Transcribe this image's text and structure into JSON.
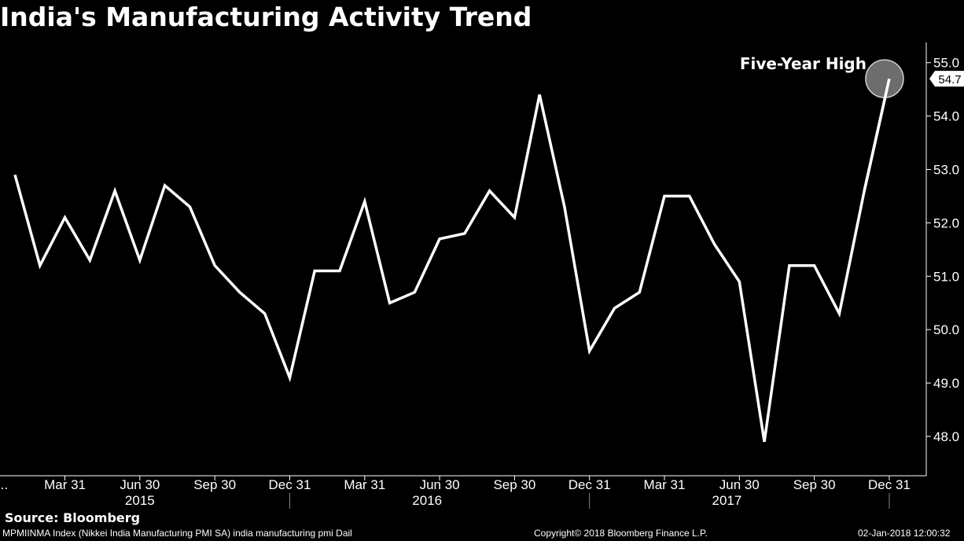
{
  "header": {
    "title": "India's Manufacturing Activity Trend"
  },
  "footer": {
    "source": "Source: Bloomberg",
    "index_desc": "MPMIINMA Index (Nikkei India Manufacturing PMI SA) india manufacturing pmi  Dail",
    "copyright": "Copyright© 2018 Bloomberg Finance L.P.",
    "timestamp": "02-Jan-2018 12:00:32"
  },
  "colors": {
    "background": "#000000",
    "line": "#ffffff",
    "marker": "#808080"
  },
  "chart_data": {
    "type": "line",
    "title": "India's Manufacturing Activity Trend",
    "xlabel": "",
    "ylabel": "",
    "ylim": [
      47.5,
      55.35
    ],
    "y_ticks": [
      48.0,
      49.0,
      50.0,
      51.0,
      52.0,
      53.0,
      54.0,
      55.0
    ],
    "y_tick_labels": [
      "48.0",
      "49.0",
      "50.0",
      "51.0",
      "52.0",
      "53.0",
      "54.0",
      "55.0"
    ],
    "grid": false,
    "x_tick_labels": [
      "...",
      "Mar 31",
      "Jun 30",
      "Sep 30",
      "Dec 31",
      "Mar 31",
      "Jun 30",
      "Sep 30",
      "Dec 31",
      "Mar 31",
      "Jun 30",
      "Sep 30",
      "Dec 31"
    ],
    "x_tick_month_index": [
      -0.5,
      2,
      5,
      8,
      11,
      14,
      17,
      20,
      23,
      26,
      29,
      32,
      35
    ],
    "year_labels": [
      "2015",
      "2016",
      "2017"
    ],
    "year_label_month_index": [
      5,
      16.5,
      28.5
    ],
    "year_divider_month_index": [
      11,
      23,
      35
    ],
    "series": [
      {
        "name": "Nikkei India Manufacturing PMI SA",
        "months": [
          "Jan 2015",
          "Feb 2015",
          "Mar 2015",
          "Apr 2015",
          "May 2015",
          "Jun 2015",
          "Jul 2015",
          "Aug 2015",
          "Sep 2015",
          "Oct 2015",
          "Nov 2015",
          "Dec 2015",
          "Jan 2016",
          "Feb 2016",
          "Mar 2016",
          "Apr 2016",
          "May 2016",
          "Jun 2016",
          "Jul 2016",
          "Aug 2016",
          "Sep 2016",
          "Oct 2016",
          "Nov 2016",
          "Dec 2016",
          "Jan 2017",
          "Feb 2017",
          "Mar 2017",
          "Apr 2017",
          "May 2017",
          "Jun 2017",
          "Jul 2017",
          "Aug 2017",
          "Sep 2017",
          "Oct 2017",
          "Nov 2017",
          "Dec 2017"
        ],
        "values": [
          52.9,
          51.2,
          52.1,
          51.3,
          52.6,
          51.3,
          52.7,
          52.3,
          51.2,
          50.7,
          50.3,
          49.1,
          51.1,
          51.1,
          52.4,
          50.5,
          50.7,
          51.7,
          51.8,
          52.6,
          52.1,
          54.4,
          52.3,
          49.6,
          50.4,
          50.7,
          52.5,
          52.5,
          51.6,
          50.9,
          47.9,
          51.2,
          51.2,
          50.3,
          52.6,
          54.7
        ]
      }
    ],
    "last_value_label": "54.7",
    "annotation": {
      "text": "Five-Year High",
      "month_index": 35,
      "value": 54.7
    }
  }
}
